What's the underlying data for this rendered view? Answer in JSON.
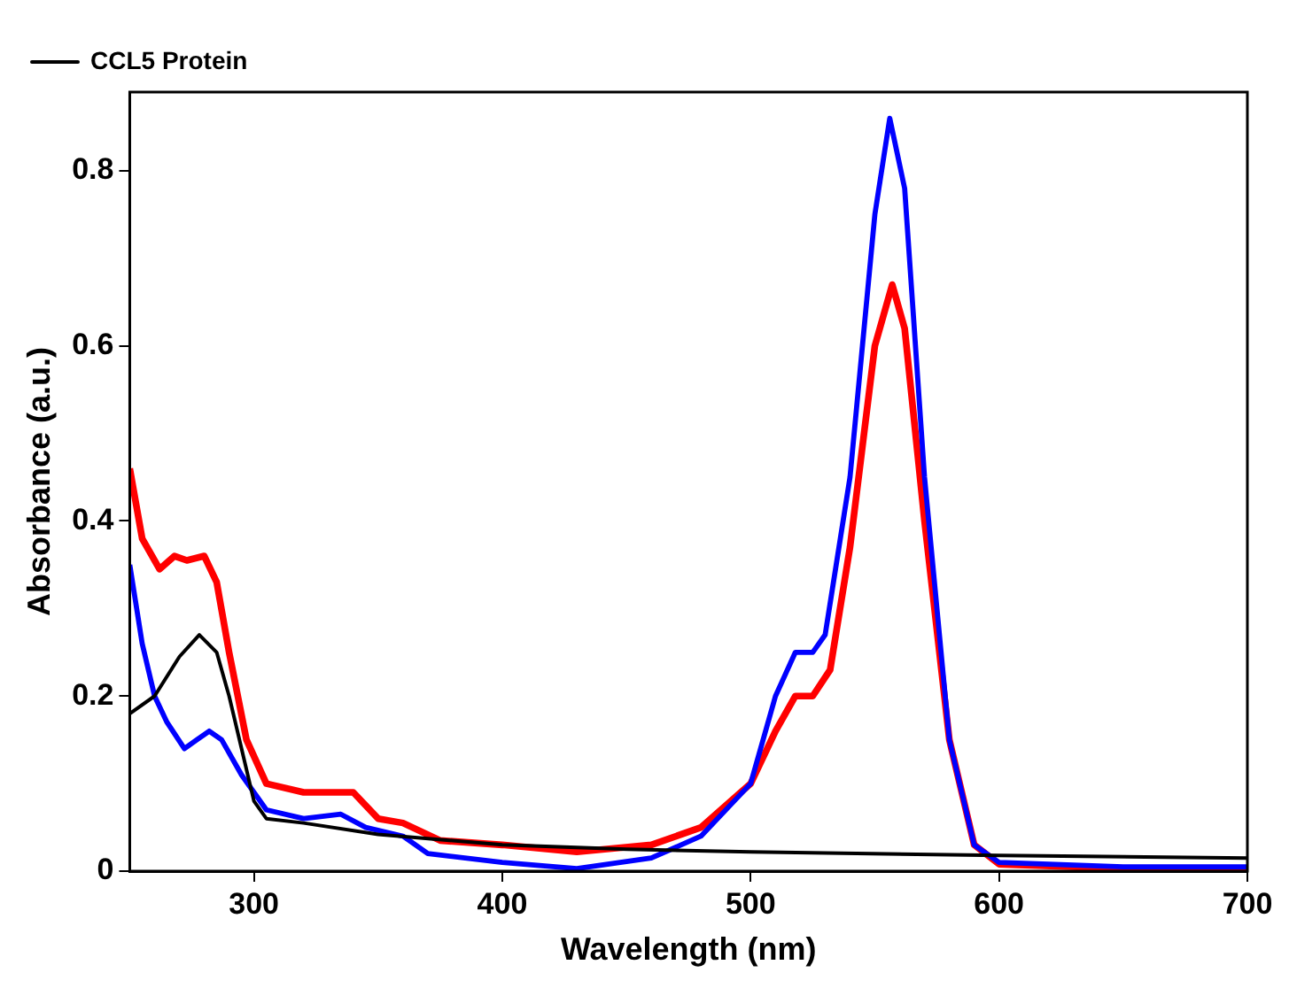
{
  "chart_data": {
    "type": "line",
    "xlabel": "Wavelength (nm)",
    "ylabel": "Absorbance (a.u.)",
    "xlim": [
      250,
      700
    ],
    "xticks": [
      300,
      400,
      500,
      600,
      700
    ],
    "ylim": [
      0,
      0.89
    ],
    "yticks": [
      {
        "value": 0,
        "label": "0"
      },
      0.2,
      0.4,
      0.6,
      0.8
    ],
    "grid": false,
    "legend": "top left",
    "marker": "none",
    "line_style": "solid",
    "series": [
      {
        "name": "CCL5 Protein",
        "color": "#000000",
        "x": [
          250,
          260,
          270,
          278,
          285,
          290,
          295,
          300,
          305,
          320,
          350,
          400,
          450,
          500,
          600,
          700
        ],
        "values": [
          0.18,
          0.2,
          0.245,
          0.27,
          0.25,
          0.2,
          0.14,
          0.08,
          0.06,
          0.055,
          0.042,
          0.03,
          0.025,
          0.022,
          0.018,
          0.015
        ]
      },
      {
        "color": "#0000ff",
        "x": [
          250,
          255,
          260,
          265,
          272,
          277,
          282,
          287,
          295,
          305,
          320,
          335,
          345,
          360,
          370,
          400,
          430,
          460,
          480,
          500,
          510,
          518,
          525,
          530,
          540,
          550,
          556,
          562,
          570,
          580,
          590,
          600,
          650,
          700
        ],
        "values": [
          0.35,
          0.26,
          0.2,
          0.17,
          0.14,
          0.15,
          0.16,
          0.15,
          0.11,
          0.07,
          0.06,
          0.065,
          0.05,
          0.04,
          0.02,
          0.01,
          0.003,
          0.015,
          0.04,
          0.1,
          0.2,
          0.25,
          0.25,
          0.27,
          0.45,
          0.75,
          0.86,
          0.78,
          0.45,
          0.15,
          0.03,
          0.01,
          0.005,
          0.005
        ]
      },
      {
        "color": "#ff0000",
        "x": [
          250,
          255,
          262,
          268,
          273,
          280,
          285,
          290,
          297,
          305,
          320,
          340,
          350,
          360,
          375,
          400,
          430,
          460,
          480,
          500,
          510,
          518,
          525,
          532,
          540,
          550,
          557,
          562,
          570,
          580,
          590,
          600,
          650,
          700
        ],
        "values": [
          0.46,
          0.38,
          0.345,
          0.36,
          0.355,
          0.36,
          0.33,
          0.25,
          0.15,
          0.1,
          0.09,
          0.09,
          0.06,
          0.055,
          0.035,
          0.03,
          0.022,
          0.03,
          0.05,
          0.1,
          0.16,
          0.2,
          0.2,
          0.23,
          0.37,
          0.6,
          0.67,
          0.62,
          0.4,
          0.15,
          0.03,
          0.008,
          0.003,
          0.002
        ]
      }
    ]
  }
}
